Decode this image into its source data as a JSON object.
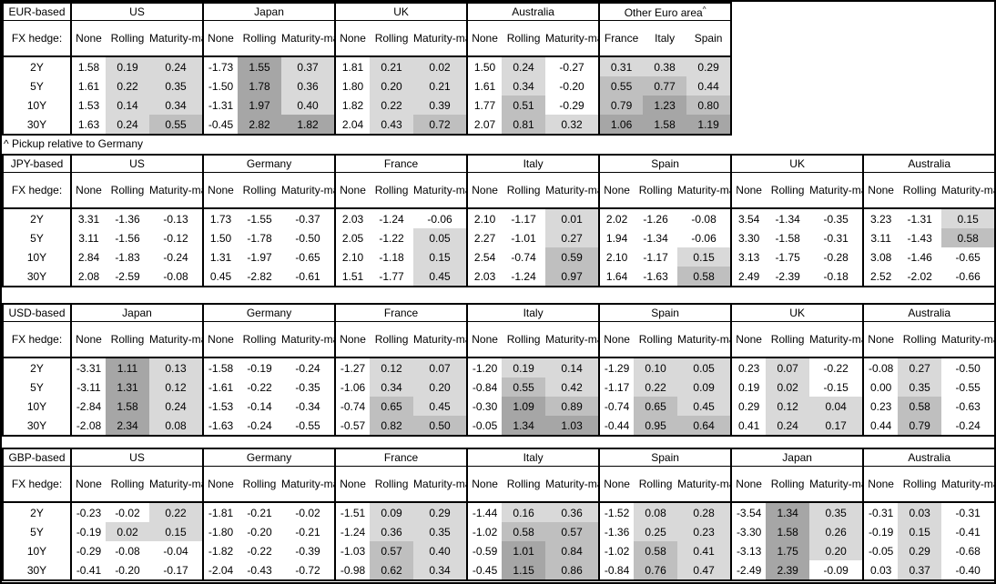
{
  "labels": {
    "fx_hedge": "FX hedge:"
  },
  "tenors": [
    "2Y",
    "5Y",
    "10Y",
    "30Y"
  ],
  "hedge_columns": [
    "None",
    "Rolling",
    "Maturity-matched"
  ],
  "footnote": "^ Pickup relative to Germany",
  "shading": {
    "description": "heat shading applied to hedged columns and Other-Euro-area columns",
    "negative": null,
    "low": "#d9d9d9",
    "mid": "#bfbfbf",
    "high": "#a6a6a6",
    "low_min": 0,
    "mid_min": 0.5,
    "high_min": 1.0
  },
  "tables": [
    {
      "name": "eur-based-table",
      "base_label": "EUR-based",
      "groups": [
        {
          "type": "hedge",
          "name": "US",
          "columns": [
            "None",
            "Rolling",
            "Maturity-matched"
          ],
          "shaded": [
            false,
            true,
            true
          ],
          "rows": [
            [
              "1.58",
              "0.19",
              "0.24"
            ],
            [
              "1.61",
              "0.22",
              "0.35"
            ],
            [
              "1.53",
              "0.14",
              "0.34"
            ],
            [
              "1.63",
              "0.24",
              "0.55"
            ]
          ]
        },
        {
          "type": "hedge",
          "name": "Japan",
          "columns": [
            "None",
            "Rolling",
            "Maturity-matched"
          ],
          "shaded": [
            false,
            true,
            true
          ],
          "rows": [
            [
              "-1.73",
              "1.55",
              "0.37"
            ],
            [
              "-1.50",
              "1.78",
              "0.36"
            ],
            [
              "-1.31",
              "1.97",
              "0.40"
            ],
            [
              "-0.45",
              "2.82",
              "1.82"
            ]
          ]
        },
        {
          "type": "hedge",
          "name": "UK",
          "columns": [
            "None",
            "Rolling",
            "Maturity-matched"
          ],
          "shaded": [
            false,
            true,
            true
          ],
          "rows": [
            [
              "1.81",
              "0.21",
              "0.02"
            ],
            [
              "1.80",
              "0.20",
              "0.21"
            ],
            [
              "1.82",
              "0.22",
              "0.39"
            ],
            [
              "2.04",
              "0.43",
              "0.72"
            ]
          ]
        },
        {
          "type": "hedge",
          "name": "Australia",
          "columns": [
            "None",
            "Rolling",
            "Maturity-matched"
          ],
          "shaded": [
            false,
            true,
            true
          ],
          "rows": [
            [
              "1.50",
              "0.24",
              "-0.27"
            ],
            [
              "1.61",
              "0.34",
              "-0.20"
            ],
            [
              "1.77",
              "0.51",
              "-0.29"
            ],
            [
              "2.07",
              "0.81",
              "0.32"
            ]
          ]
        },
        {
          "type": "countries",
          "name": "Other Euro area",
          "superscript": "^",
          "columns": [
            "France",
            "Italy",
            "Spain"
          ],
          "shaded": [
            true,
            true,
            true
          ],
          "rows": [
            [
              "0.31",
              "0.38",
              "0.29"
            ],
            [
              "0.55",
              "0.77",
              "0.44"
            ],
            [
              "0.79",
              "1.23",
              "0.80"
            ],
            [
              "1.06",
              "1.58",
              "1.19"
            ]
          ]
        }
      ]
    },
    {
      "name": "jpy-based-table",
      "base_label": "JPY-based",
      "groups": [
        {
          "type": "hedge",
          "name": "US",
          "columns": [
            "None",
            "Rolling",
            "Maturity-matched"
          ],
          "shaded": [
            false,
            true,
            true
          ],
          "rows": [
            [
              "3.31",
              "-1.36",
              "-0.13"
            ],
            [
              "3.11",
              "-1.56",
              "-0.12"
            ],
            [
              "2.84",
              "-1.83",
              "-0.24"
            ],
            [
              "2.08",
              "-2.59",
              "-0.08"
            ]
          ]
        },
        {
          "type": "hedge",
          "name": "Germany",
          "columns": [
            "None",
            "Rolling",
            "Maturity-matched"
          ],
          "shaded": [
            false,
            true,
            true
          ],
          "rows": [
            [
              "1.73",
              "-1.55",
              "-0.37"
            ],
            [
              "1.50",
              "-1.78",
              "-0.50"
            ],
            [
              "1.31",
              "-1.97",
              "-0.65"
            ],
            [
              "0.45",
              "-2.82",
              "-0.61"
            ]
          ]
        },
        {
          "type": "hedge",
          "name": "France",
          "columns": [
            "None",
            "Rolling",
            "Maturity-matched"
          ],
          "shaded": [
            false,
            true,
            true
          ],
          "rows": [
            [
              "2.03",
              "-1.24",
              "-0.06"
            ],
            [
              "2.05",
              "-1.22",
              "0.05"
            ],
            [
              "2.10",
              "-1.18",
              "0.15"
            ],
            [
              "1.51",
              "-1.77",
              "0.45"
            ]
          ]
        },
        {
          "type": "hedge",
          "name": "Italy",
          "columns": [
            "None",
            "Rolling",
            "Maturity-matched"
          ],
          "shaded": [
            false,
            true,
            true
          ],
          "rows": [
            [
              "2.10",
              "-1.17",
              "0.01"
            ],
            [
              "2.27",
              "-1.01",
              "0.27"
            ],
            [
              "2.54",
              "-0.74",
              "0.59"
            ],
            [
              "2.03",
              "-1.24",
              "0.97"
            ]
          ]
        },
        {
          "type": "hedge",
          "name": "Spain",
          "columns": [
            "None",
            "Rolling",
            "Maturity-matched"
          ],
          "shaded": [
            false,
            true,
            true
          ],
          "rows": [
            [
              "2.02",
              "-1.26",
              "-0.08"
            ],
            [
              "1.94",
              "-1.34",
              "-0.06"
            ],
            [
              "2.10",
              "-1.17",
              "0.15"
            ],
            [
              "1.64",
              "-1.63",
              "0.58"
            ]
          ]
        },
        {
          "type": "hedge",
          "name": "UK",
          "columns": [
            "None",
            "Rolling",
            "Maturity-matched"
          ],
          "shaded": [
            false,
            true,
            true
          ],
          "rows": [
            [
              "3.54",
              "-1.34",
              "-0.35"
            ],
            [
              "3.30",
              "-1.58",
              "-0.31"
            ],
            [
              "3.13",
              "-1.75",
              "-0.28"
            ],
            [
              "2.49",
              "-2.39",
              "-0.18"
            ]
          ]
        },
        {
          "type": "hedge",
          "name": "Australia",
          "columns": [
            "None",
            "Rolling",
            "Maturity-matched"
          ],
          "shaded": [
            false,
            true,
            true
          ],
          "rows": [
            [
              "3.23",
              "-1.31",
              "0.15"
            ],
            [
              "3.11",
              "-1.43",
              "0.58"
            ],
            [
              "3.08",
              "-1.46",
              "-0.65"
            ],
            [
              "2.52",
              "-2.02",
              "-0.66"
            ]
          ]
        }
      ]
    },
    {
      "name": "usd-based-table",
      "base_label": "USD-based",
      "groups": [
        {
          "type": "hedge",
          "name": "Japan",
          "columns": [
            "None",
            "Rolling",
            "Maturity-matched"
          ],
          "shaded": [
            false,
            true,
            true
          ],
          "rows": [
            [
              "-3.31",
              "1.11",
              "0.13"
            ],
            [
              "-3.11",
              "1.31",
              "0.12"
            ],
            [
              "-2.84",
              "1.58",
              "0.24"
            ],
            [
              "-2.08",
              "2.34",
              "0.08"
            ]
          ]
        },
        {
          "type": "hedge",
          "name": "Germany",
          "columns": [
            "None",
            "Rolling",
            "Maturity-matched"
          ],
          "shaded": [
            false,
            true,
            true
          ],
          "rows": [
            [
              "-1.58",
              "-0.19",
              "-0.24"
            ],
            [
              "-1.61",
              "-0.22",
              "-0.35"
            ],
            [
              "-1.53",
              "-0.14",
              "-0.34"
            ],
            [
              "-1.63",
              "-0.24",
              "-0.55"
            ]
          ]
        },
        {
          "type": "hedge",
          "name": "France",
          "columns": [
            "None",
            "Rolling",
            "Maturity-matched"
          ],
          "shaded": [
            false,
            true,
            true
          ],
          "rows": [
            [
              "-1.27",
              "0.12",
              "0.07"
            ],
            [
              "-1.06",
              "0.34",
              "0.20"
            ],
            [
              "-0.74",
              "0.65",
              "0.45"
            ],
            [
              "-0.57",
              "0.82",
              "0.50"
            ]
          ]
        },
        {
          "type": "hedge",
          "name": "Italy",
          "columns": [
            "None",
            "Rolling",
            "Maturity-matched"
          ],
          "shaded": [
            false,
            true,
            true
          ],
          "rows": [
            [
              "-1.20",
              "0.19",
              "0.14"
            ],
            [
              "-0.84",
              "0.55",
              "0.42"
            ],
            [
              "-0.30",
              "1.09",
              "0.89"
            ],
            [
              "-0.05",
              "1.34",
              "1.03"
            ]
          ]
        },
        {
          "type": "hedge",
          "name": "Spain",
          "columns": [
            "None",
            "Rolling",
            "Maturity-matched"
          ],
          "shaded": [
            false,
            true,
            true
          ],
          "rows": [
            [
              "-1.29",
              "0.10",
              "0.05"
            ],
            [
              "-1.17",
              "0.22",
              "0.09"
            ],
            [
              "-0.74",
              "0.65",
              "0.45"
            ],
            [
              "-0.44",
              "0.95",
              "0.64"
            ]
          ]
        },
        {
          "type": "hedge",
          "name": "UK",
          "columns": [
            "None",
            "Rolling",
            "Maturity-matched"
          ],
          "shaded": [
            false,
            true,
            true
          ],
          "rows": [
            [
              "0.23",
              "0.07",
              "-0.22"
            ],
            [
              "0.19",
              "0.02",
              "-0.15"
            ],
            [
              "0.29",
              "0.12",
              "0.04"
            ],
            [
              "0.41",
              "0.24",
              "0.17"
            ]
          ]
        },
        {
          "type": "hedge",
          "name": "Australia",
          "columns": [
            "None",
            "Rolling",
            "Maturity-matched"
          ],
          "shaded": [
            false,
            true,
            true
          ],
          "rows": [
            [
              "-0.08",
              "0.27",
              "-0.50"
            ],
            [
              "0.00",
              "0.35",
              "-0.55"
            ],
            [
              "0.23",
              "0.58",
              "-0.63"
            ],
            [
              "0.44",
              "0.79",
              "-0.24"
            ]
          ]
        }
      ]
    },
    {
      "name": "gbp-based-table",
      "base_label": "GBP-based",
      "groups": [
        {
          "type": "hedge",
          "name": "US",
          "columns": [
            "None",
            "Rolling",
            "Maturity-matched"
          ],
          "shaded": [
            false,
            true,
            true
          ],
          "rows": [
            [
              "-0.23",
              "-0.02",
              "0.22"
            ],
            [
              "-0.19",
              "0.02",
              "0.15"
            ],
            [
              "-0.29",
              "-0.08",
              "-0.04"
            ],
            [
              "-0.41",
              "-0.20",
              "-0.17"
            ]
          ]
        },
        {
          "type": "hedge",
          "name": "Germany",
          "columns": [
            "None",
            "Rolling",
            "Maturity-matched"
          ],
          "shaded": [
            false,
            true,
            true
          ],
          "rows": [
            [
              "-1.81",
              "-0.21",
              "-0.02"
            ],
            [
              "-1.80",
              "-0.20",
              "-0.21"
            ],
            [
              "-1.82",
              "-0.22",
              "-0.39"
            ],
            [
              "-2.04",
              "-0.43",
              "-0.72"
            ]
          ]
        },
        {
          "type": "hedge",
          "name": "France",
          "columns": [
            "None",
            "Rolling",
            "Maturity-matched"
          ],
          "shaded": [
            false,
            true,
            true
          ],
          "rows": [
            [
              "-1.51",
              "0.09",
              "0.29"
            ],
            [
              "-1.24",
              "0.36",
              "0.35"
            ],
            [
              "-1.03",
              "0.57",
              "0.40"
            ],
            [
              "-0.98",
              "0.62",
              "0.34"
            ]
          ]
        },
        {
          "type": "hedge",
          "name": "Italy",
          "columns": [
            "None",
            "Rolling",
            "Maturity-matched"
          ],
          "shaded": [
            false,
            true,
            true
          ],
          "rows": [
            [
              "-1.44",
              "0.16",
              "0.36"
            ],
            [
              "-1.02",
              "0.58",
              "0.57"
            ],
            [
              "-0.59",
              "1.01",
              "0.84"
            ],
            [
              "-0.45",
              "1.15",
              "0.86"
            ]
          ]
        },
        {
          "type": "hedge",
          "name": "Spain",
          "columns": [
            "None",
            "Rolling",
            "Maturity-matched"
          ],
          "shaded": [
            false,
            true,
            true
          ],
          "rows": [
            [
              "-1.52",
              "0.08",
              "0.28"
            ],
            [
              "-1.36",
              "0.25",
              "0.23"
            ],
            [
              "-1.02",
              "0.58",
              "0.41"
            ],
            [
              "-0.84",
              "0.76",
              "0.47"
            ]
          ]
        },
        {
          "type": "hedge",
          "name": "Japan",
          "columns": [
            "None",
            "Rolling",
            "Maturity-matched"
          ],
          "shaded": [
            false,
            true,
            true
          ],
          "rows": [
            [
              "-3.54",
              "1.34",
              "0.35"
            ],
            [
              "-3.30",
              "1.58",
              "0.26"
            ],
            [
              "-3.13",
              "1.75",
              "0.20"
            ],
            [
              "-2.49",
              "2.39",
              "-0.09"
            ]
          ]
        },
        {
          "type": "hedge",
          "name": "Australia",
          "columns": [
            "None",
            "Rolling",
            "Maturity-matched"
          ],
          "shaded": [
            false,
            true,
            true
          ],
          "rows": [
            [
              "-0.31",
              "0.03",
              "-0.31"
            ],
            [
              "-0.19",
              "0.15",
              "-0.41"
            ],
            [
              "-0.05",
              "0.29",
              "-0.68"
            ],
            [
              "0.03",
              "0.37",
              "-0.40"
            ]
          ]
        }
      ]
    }
  ]
}
